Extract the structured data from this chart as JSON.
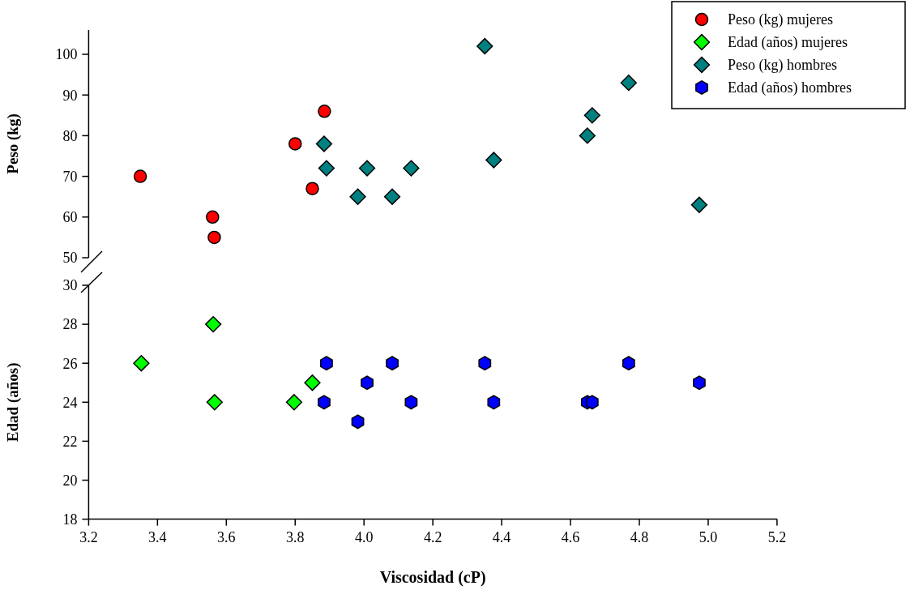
{
  "chart_data": [
    {
      "type": "scatter",
      "ylabel": "Peso (kg)",
      "xlim": [
        3.2,
        5.2
      ],
      "ylim": [
        50,
        106
      ],
      "yticks": [
        50,
        60,
        70,
        80,
        90,
        100
      ],
      "tick_labels": "y",
      "legend": "top right",
      "series": [
        {
          "name": "Peso (kg) mujeres",
          "color": "#ff0000",
          "marker": "circle",
          "x": [
            3.35,
            3.56,
            3.565,
            3.8,
            3.885,
            3.85
          ],
          "values": [
            70,
            60,
            55,
            78,
            86,
            67
          ]
        },
        {
          "name": "Peso (kg) hombres",
          "color": "#008080",
          "marker": "diamond",
          "x": [
            3.884,
            3.891,
            4.009,
            4.137,
            3.982,
            4.082,
            4.351,
            4.769,
            4.663,
            4.649,
            4.377,
            4.974
          ],
          "values": [
            78,
            72,
            72,
            72,
            65,
            65,
            102,
            93,
            85,
            80,
            74,
            63
          ]
        }
      ]
    },
    {
      "type": "scatter",
      "xlabel": "Viscosidad (cP)",
      "ylabel": "Edad (años)",
      "xlim": [
        3.2,
        5.2
      ],
      "xticks": [
        {
          "value": 3.2,
          "label": "3.2"
        },
        {
          "value": 3.4,
          "label": "3.4"
        },
        {
          "value": 3.6,
          "label": "3.6"
        },
        {
          "value": 3.8,
          "label": "3.8"
        },
        {
          "value": 4,
          "label": "4.0"
        },
        {
          "value": 4.2,
          "label": "4.2"
        },
        {
          "value": 4.4,
          "label": "4.4"
        },
        {
          "value": 4.6,
          "label": "4.6"
        },
        {
          "value": 4.8,
          "label": "4.8"
        },
        {
          "value": 5,
          "label": "5.0"
        },
        {
          "value": 5.2,
          "label": "5.2"
        }
      ],
      "ylim": [
        18,
        30
      ],
      "yticks": [
        18,
        20,
        22,
        24,
        26,
        28,
        30
      ],
      "legend": "top right",
      "series": [
        {
          "name": "Edad (años) mujeres",
          "color": "#00ff00",
          "marker": "diamond",
          "x": [
            3.353,
            3.562,
            3.566,
            3.797,
            3.85
          ],
          "values": [
            26,
            28,
            24,
            24,
            25
          ]
        },
        {
          "name": "Edad (años) hombres",
          "color": "#0000ff",
          "x": [
            3.891,
            3.884,
            3.982,
            4.009,
            4.082,
            4.137,
            4.351,
            4.377,
            4.649,
            4.663,
            4.769,
            4.974
          ],
          "values": [
            26,
            24,
            23,
            25,
            26,
            24,
            26,
            24,
            24,
            24,
            26,
            25
          ]
        }
      ]
    }
  ]
}
